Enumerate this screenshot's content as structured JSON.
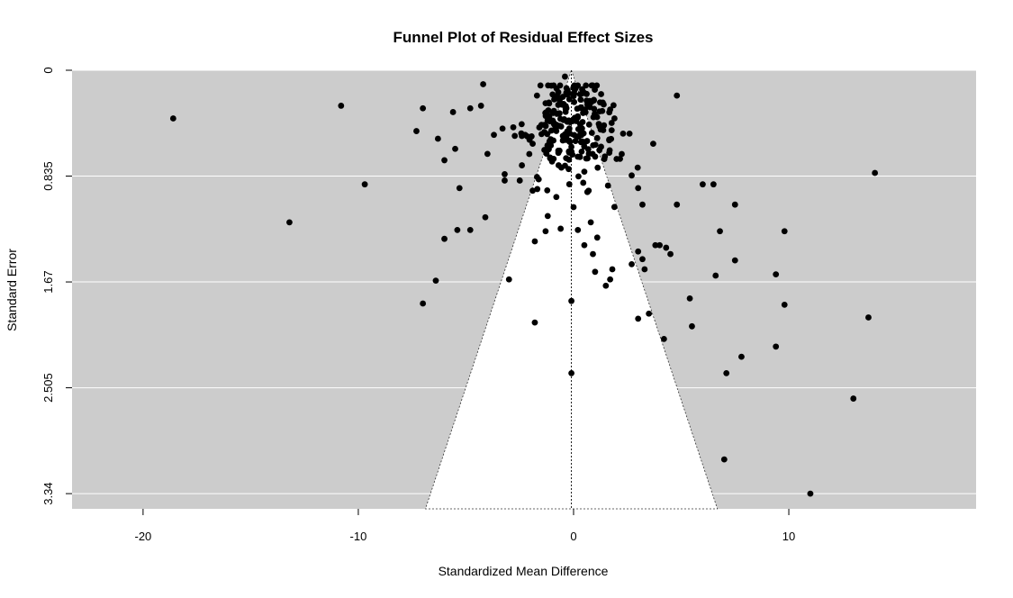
{
  "chart_data": {
    "type": "scatter",
    "subtype": "funnel",
    "title": "Funnel Plot of Residual Effect Sizes",
    "xlabel": "Standardized Mean Difference",
    "ylabel": "Standard Error",
    "xlim": [
      -23.3,
      18.7
    ],
    "ylim": [
      3.46,
      0
    ],
    "y_reversed": true,
    "x_ticks": [
      -20,
      -10,
      0,
      10
    ],
    "x_tick_labels": [
      "-20",
      "-10",
      "0",
      "10"
    ],
    "y_ticks": [
      0,
      0.835,
      1.67,
      2.505,
      3.34
    ],
    "y_tick_labels": [
      "0",
      "0.835",
      "1.67",
      "2.505",
      "3.34"
    ],
    "grid": "horizontal",
    "reference_line_x": -0.1,
    "funnel_apex": [
      -0.1,
      0
    ],
    "funnel_half_width_per_se": 1.96,
    "colors": {
      "background": "#cccccc",
      "funnel_region": "#ffffff",
      "grid": "#ffffff",
      "points": "#000000"
    },
    "points": [
      [
        -18.6,
        0.38
      ],
      [
        -10.8,
        0.28
      ],
      [
        -9.7,
        0.9
      ],
      [
        -13.2,
        1.2
      ],
      [
        -7.0,
        0.3
      ],
      [
        -7.3,
        0.48
      ],
      [
        -6.3,
        0.54
      ],
      [
        -6.0,
        0.71
      ],
      [
        -5.6,
        0.33
      ],
      [
        -5.5,
        0.62
      ],
      [
        -5.3,
        0.93
      ],
      [
        -5.4,
        1.26
      ],
      [
        -4.8,
        1.26
      ],
      [
        -6.0,
        1.33
      ],
      [
        -6.4,
        1.66
      ],
      [
        -7.0,
        1.84
      ],
      [
        -4.8,
        0.3
      ],
      [
        -4.3,
        0.28
      ],
      [
        -4.2,
        0.11
      ],
      [
        -4.0,
        0.66
      ],
      [
        -3.7,
        0.51
      ],
      [
        -3.3,
        0.46
      ],
      [
        -3.2,
        0.82
      ],
      [
        -3.2,
        0.87
      ],
      [
        -2.5,
        0.87
      ],
      [
        -2.4,
        0.75
      ],
      [
        -4.1,
        1.16
      ],
      [
        -3.0,
        1.65
      ],
      [
        -1.8,
        1.99
      ],
      [
        -0.1,
        1.82
      ],
      [
        -0.1,
        2.39
      ],
      [
        4.8,
        0.2
      ],
      [
        3.7,
        0.58
      ],
      [
        1.9,
        0.38
      ],
      [
        2.3,
        0.5
      ],
      [
        2.6,
        0.5
      ],
      [
        2.7,
        0.83
      ],
      [
        3.0,
        0.93
      ],
      [
        3.2,
        1.06
      ],
      [
        4.8,
        1.06
      ],
      [
        6.0,
        0.9
      ],
      [
        6.5,
        0.9
      ],
      [
        7.5,
        1.06
      ],
      [
        6.8,
        1.27
      ],
      [
        9.8,
        1.27
      ],
      [
        3.8,
        1.38
      ],
      [
        4.0,
        1.38
      ],
      [
        4.3,
        1.4
      ],
      [
        4.5,
        1.45
      ],
      [
        3.2,
        1.49
      ],
      [
        3.0,
        1.43
      ],
      [
        2.7,
        1.53
      ],
      [
        3.3,
        1.57
      ],
      [
        7.5,
        1.5
      ],
      [
        6.6,
        1.62
      ],
      [
        9.4,
        1.61
      ],
      [
        5.4,
        1.8
      ],
      [
        5.5,
        2.02
      ],
      [
        3.5,
        1.92
      ],
      [
        3.0,
        1.96
      ],
      [
        4.2,
        2.12
      ],
      [
        9.8,
        1.85
      ],
      [
        13.7,
        1.95
      ],
      [
        7.8,
        2.26
      ],
      [
        7.1,
        2.39
      ],
      [
        9.4,
        2.18
      ],
      [
        13.0,
        2.59
      ],
      [
        14.0,
        0.81
      ],
      [
        7.0,
        3.07
      ],
      [
        11.0,
        3.34
      ],
      [
        1.7,
        1.65
      ],
      [
        1.8,
        1.57
      ],
      [
        1.0,
        1.59
      ],
      [
        1.5,
        1.7
      ],
      [
        0.9,
        1.45
      ],
      [
        0.5,
        1.38
      ],
      [
        1.1,
        1.32
      ],
      [
        0.2,
        1.26
      ],
      [
        -0.6,
        1.25
      ],
      [
        -1.3,
        1.27
      ],
      [
        -1.8,
        1.35
      ],
      [
        -1.2,
        1.15
      ],
      [
        0.8,
        1.2
      ],
      [
        0.0,
        1.08
      ],
      [
        -0.8,
        1.0
      ],
      [
        0.7,
        0.95
      ],
      [
        1.6,
        0.91
      ],
      [
        -1.9,
        0.95
      ],
      [
        -0.4,
        0.05
      ],
      [
        0.1,
        0.14
      ],
      [
        -1.7,
        0.2
      ],
      [
        -1.3,
        0.26
      ],
      [
        -0.9,
        0.23
      ],
      [
        -0.5,
        0.21
      ],
      [
        0.3,
        0.19
      ],
      [
        1.4,
        0.27
      ],
      [
        1.7,
        0.31
      ],
      [
        -2.8,
        0.45
      ],
      [
        -1.9,
        0.58
      ],
      [
        1.2,
        0.63
      ],
      [
        2.0,
        0.7
      ],
      [
        -1.0,
        0.72
      ],
      [
        0.5,
        0.8
      ],
      [
        -0.2,
        0.65
      ]
    ],
    "cluster": {
      "center": [
        -0.05,
        0.42
      ],
      "count": 220,
      "seed": 20240607,
      "spread": [
        0.95,
        0.16
      ],
      "spread_growth": [
        0.9,
        0.0
      ]
    }
  }
}
